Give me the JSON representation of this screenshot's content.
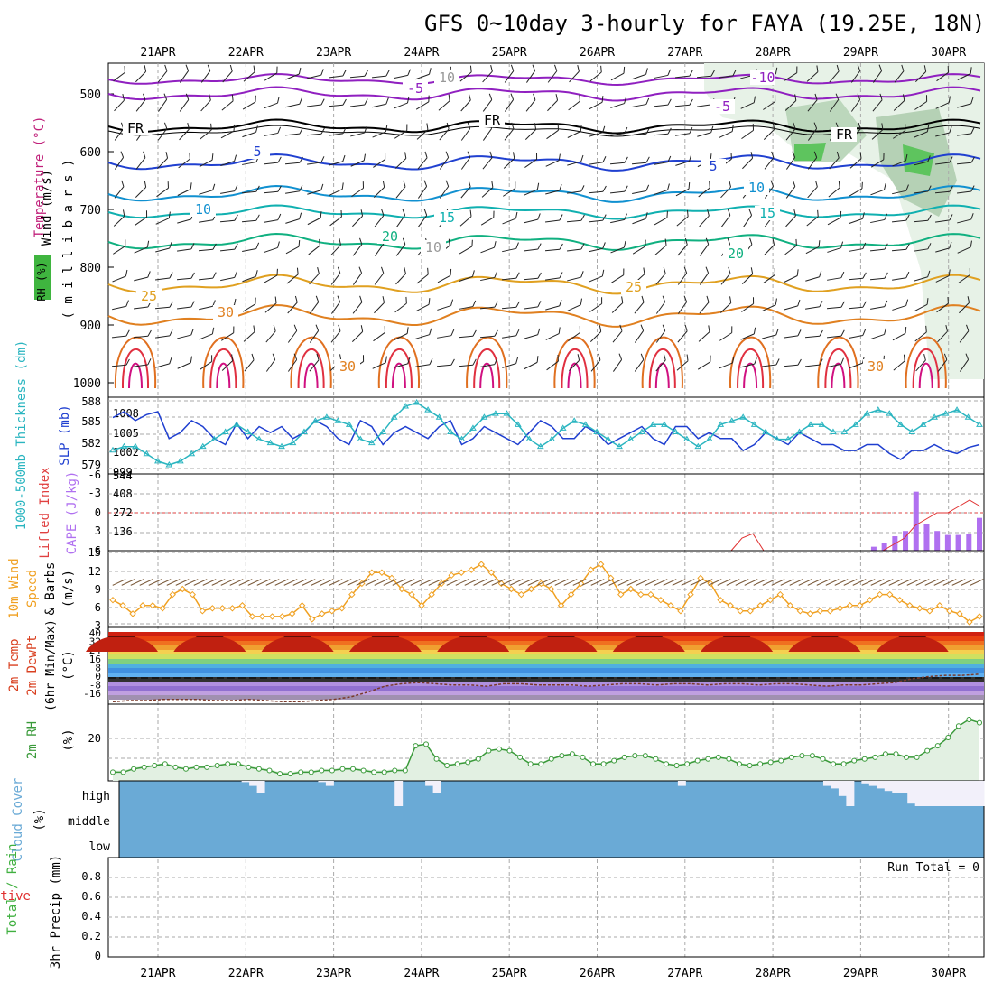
{
  "title": "GFS 0~10day 3-hourly for FAYA (19.25E, 18N)",
  "dates": [
    "21APR",
    "22APR",
    "23APR",
    "24APR",
    "25APR",
    "26APR",
    "27APR",
    "28APR",
    "29APR",
    "30APR"
  ],
  "colors": {
    "grid": "#aaaaaa",
    "slp": "#1f3fd0",
    "thickness": "#2ab5c0",
    "wind": "#f0a020",
    "cape": "#b070f0",
    "li": "#e03030",
    "rh": "#3a9a3a",
    "rh_fill": "#e2f0e2",
    "cloud": "#6aaad6",
    "temp_warm": "#d94020",
    "temp_cold": "#8a60d0"
  },
  "panels": {
    "upper": {
      "ylabels": {
        "wind": "Wind (m/s)",
        "temp": "Temperature (°C)",
        "rh": "RH (%)",
        "pres": "( m i l l i b a r s )"
      },
      "ticks": [
        "500",
        "600",
        "700",
        "800",
        "900",
        "1000"
      ]
    },
    "slp": {
      "ylabels": {
        "thick": "1000-500mb Thickness (dm)",
        "slp": "SLP (mb)"
      },
      "left_ticks": [
        "588",
        "585",
        "582",
        "579"
      ],
      "right_ticks": [
        "1008",
        "1005",
        "1002",
        "999"
      ]
    },
    "cape": {
      "ylabels": {
        "li": "Lifted Index",
        "cape": "CAPE (J/kg)"
      },
      "left_ticks": [
        "-6",
        "-3",
        "0",
        "3",
        "6"
      ],
      "right_ticks": [
        "544",
        "408",
        "272",
        "136"
      ]
    },
    "wind": {
      "ylabels": {
        "a": "10m Wind",
        "b": "Speed",
        "c": "& Barbs",
        "d": "(m/s)"
      },
      "ticks": [
        "15",
        "12",
        "9",
        "6",
        "3"
      ]
    },
    "temp2m": {
      "ylabels": {
        "a": "2m Temp",
        "b": "2m DewPt",
        "c": "(6hr Min/Max)",
        "d": "(°C)"
      },
      "ticks": [
        "40",
        "32",
        "24",
        "16",
        "8",
        "0",
        "-8",
        "-16"
      ]
    },
    "rh2m": {
      "ylabels": {
        "a": "2m RH",
        "b": "(%)"
      },
      "ticks": [
        "20"
      ]
    },
    "cloud": {
      "ylabels": {
        "a": "Cloud Cover",
        "b": "(%)"
      },
      "levels": [
        "high",
        "middle",
        "low"
      ]
    },
    "precip": {
      "ylabels": {
        "a": "Total / Rain",
        "b": "Convective",
        "c": "3hr Precip (mm)"
      },
      "ticks": [
        "0.8",
        "0.6",
        "0.4",
        "0.2",
        "0"
      ],
      "run_total": "Run Total = 0"
    }
  },
  "contour_labels": [
    "-10",
    "-5",
    "-5",
    "FR",
    "FR",
    "FR",
    "5",
    "5",
    "10",
    "10",
    "15",
    "15",
    "20",
    "20",
    "25",
    "25",
    "30",
    "10",
    "10",
    "30",
    "30"
  ],
  "chart_data": [
    {
      "type": "line",
      "panel": "1000-500mb Thickness / SLP",
      "x_label_dates": [
        "21APR",
        "22APR",
        "23APR",
        "24APR",
        "25APR",
        "26APR",
        "27APR",
        "28APR",
        "29APR",
        "30APR"
      ],
      "series": [
        {
          "name": "SLP (mb)",
          "values": [
            1007.5,
            1008.5,
            1007,
            1008,
            1008.5,
            1004,
            1005,
            1007,
            1006,
            1004,
            1003,
            1006.5,
            1004,
            1006,
            1005,
            1006,
            1004,
            1005,
            1007,
            1006,
            1004,
            1003,
            1007,
            1006,
            1003,
            1005,
            1006,
            1005,
            1004,
            1006,
            1007,
            1003,
            1004,
            1006,
            1005,
            1004,
            1003,
            1005,
            1007,
            1006,
            1004,
            1004,
            1006,
            1005,
            1003,
            1004,
            1005,
            1006,
            1004,
            1003,
            1006,
            1006,
            1004,
            1005,
            1004,
            1004,
            1002,
            1003,
            1005,
            1004,
            1003,
            1005,
            1004,
            1003,
            1003,
            1002,
            1002,
            1003,
            1003,
            1001.5,
            1000.5,
            1002,
            1002,
            1003,
            1002,
            1001.5,
            1002.5,
            1003
          ]
        },
        {
          "name": "1000-500mb Thickness (dm)",
          "values": [
            581.5,
            582,
            582,
            581,
            580,
            579.5,
            580,
            581,
            582,
            583,
            584,
            585,
            584,
            583,
            582.5,
            582,
            582.5,
            584,
            585.5,
            586,
            585.5,
            585,
            583,
            582.5,
            584,
            586,
            587.5,
            588,
            587,
            586,
            584,
            583,
            584.5,
            586,
            586.5,
            586.5,
            585,
            583,
            582,
            583,
            584.5,
            585.5,
            585,
            584,
            583,
            582,
            583,
            584,
            585,
            585,
            584,
            583,
            582,
            583,
            585,
            585.5,
            586,
            585,
            584,
            583,
            583,
            584,
            585,
            585,
            584,
            584,
            585,
            586.5,
            587,
            586.5,
            585,
            584,
            585,
            586,
            586.5,
            587,
            586,
            585
          ]
        }
      ],
      "ylim_left": [
        579,
        588
      ],
      "ylim_right": [
        999,
        1010
      ]
    },
    {
      "type": "bar",
      "panel": "CAPE (J/kg)",
      "series": [
        {
          "name": "CAPE (J/kg)",
          "values": [
            0,
            0,
            0,
            0,
            0,
            0,
            0,
            0,
            0,
            0,
            0,
            0,
            0,
            0,
            0,
            0,
            0,
            0,
            0,
            0,
            0,
            0,
            0,
            0,
            0,
            0,
            0,
            0,
            0,
            0,
            0,
            0,
            0,
            0,
            0,
            0,
            0,
            0,
            0,
            0,
            0,
            0,
            0,
            0,
            0,
            0,
            0,
            0,
            0,
            0,
            0,
            0,
            0,
            0,
            0,
            0,
            0,
            0,
            0,
            0,
            0,
            0,
            0,
            0,
            0,
            0,
            0,
            0,
            0,
            0,
            0,
            0,
            30,
            60,
            110,
            150,
            450,
            200,
            150,
            120,
            120,
            130,
            250
          ]
        }
      ],
      "ylim": [
        0,
        544
      ]
    },
    {
      "type": "line",
      "panel": "Lifted Index",
      "series": [
        {
          "name": "Lifted Index",
          "values": [
            6,
            4,
            3.3,
            6,
            6,
            6,
            6,
            6,
            6,
            6,
            6,
            6,
            6,
            6,
            6,
            5,
            4,
            2,
            1,
            0,
            0,
            -1,
            -2,
            -1
          ]
        }
      ],
      "ylim": [
        6,
        -6
      ]
    },
    {
      "type": "line",
      "panel": "10m Wind Speed",
      "series": [
        {
          "name": "10m Wind Speed (m/s)",
          "values": [
            7,
            6,
            4.5,
            6,
            6,
            5.5,
            8,
            9,
            8,
            5,
            5.5,
            5.5,
            5.5,
            6,
            4,
            4,
            4,
            4,
            4.5,
            6,
            3.5,
            4.5,
            5,
            5.5,
            8,
            10,
            12,
            12,
            11,
            9,
            8,
            6,
            8,
            10,
            11.5,
            12,
            12.5,
            13.5,
            12,
            10,
            9,
            8,
            9,
            10,
            9,
            6,
            8,
            10,
            12.5,
            13.5,
            11,
            8,
            9,
            8,
            8,
            7,
            6,
            5,
            8,
            11,
            10,
            7,
            6,
            5,
            5,
            6,
            7,
            8,
            6,
            5,
            4.5,
            5,
            5,
            5.5,
            6,
            6,
            7,
            8,
            8,
            7,
            6,
            5.5,
            5,
            6,
            5,
            4.5,
            3,
            4
          ]
        }
      ],
      "ylim": [
        3,
        15
      ]
    },
    {
      "type": "line",
      "panel": "2m Temp / 2m DewPt",
      "series": [
        {
          "name": "2m Temp (°C)",
          "values": [
            28,
            27,
            32,
            35,
            34,
            30,
            26,
            27,
            32,
            36,
            35,
            31,
            27,
            28,
            33,
            38,
            37,
            32,
            28,
            31,
            38,
            41,
            40,
            34,
            29,
            31,
            36,
            39,
            38,
            33,
            28,
            31,
            36,
            39,
            38,
            33,
            28,
            30,
            35,
            38,
            37,
            33,
            28,
            30,
            34,
            38,
            37,
            33,
            28,
            31,
            37,
            40,
            39,
            33,
            29,
            31,
            37,
            41,
            40,
            35,
            30,
            32,
            36,
            38,
            36,
            33
          ]
        },
        {
          "name": "2m DewPt (°C)",
          "values": [
            -18,
            -17,
            -17,
            -16,
            -16,
            -16,
            -17,
            -17,
            -16,
            -17,
            -18,
            -18,
            -17,
            -16,
            -14,
            -10,
            -5,
            -3,
            -2,
            -3,
            -4,
            -4,
            -5,
            -3,
            -3,
            -4,
            -4,
            -4,
            -5,
            -4,
            -3,
            -3,
            -4,
            -3,
            -3,
            -4,
            -3,
            -3,
            -4,
            -3,
            -3,
            -4,
            -5,
            -4,
            -4,
            -3,
            -2,
            1,
            3,
            4,
            4,
            5
          ]
        }
      ],
      "ylim": [
        -20,
        44
      ]
    },
    {
      "type": "area",
      "panel": "2m RH",
      "series": [
        {
          "name": "2m RH (%)",
          "values": [
            2,
            2,
            4,
            5,
            6,
            7,
            5,
            4,
            5,
            5,
            6,
            7,
            7,
            5,
            4,
            3,
            1,
            1,
            2,
            2,
            3,
            3,
            4,
            4,
            3,
            2,
            2,
            3,
            3,
            18,
            19,
            10,
            6,
            7,
            8,
            10,
            15,
            16,
            15,
            11,
            7,
            7,
            10,
            12,
            13,
            11,
            7,
            7,
            9,
            11,
            12,
            12,
            10,
            7,
            6,
            7,
            9,
            10,
            11,
            10,
            7,
            6,
            7,
            8,
            9,
            11,
            12,
            12,
            10,
            7,
            7,
            9,
            10,
            11,
            13,
            13,
            11,
            11,
            15,
            18,
            23,
            30,
            34,
            32
          ]
        }
      ],
      "ylim": [
        0,
        40
      ]
    },
    {
      "type": "bar",
      "panel": "Cloud Cover (high)",
      "series": [
        {
          "name": "high cloud (%)",
          "values": [
            0,
            0,
            0,
            0,
            0,
            0,
            0,
            0,
            0,
            0,
            0,
            0,
            0,
            0,
            0,
            0,
            5,
            20,
            50,
            0,
            0,
            0,
            0,
            0,
            0,
            0,
            5,
            20,
            0,
            0,
            0,
            0,
            0,
            0,
            0,
            0,
            100,
            0,
            0,
            0,
            20,
            50,
            0,
            0,
            0,
            0,
            0,
            0,
            0,
            0,
            0,
            0,
            0,
            0,
            0,
            0,
            0,
            0,
            0,
            0,
            0,
            0,
            0,
            0,
            0,
            0,
            0,
            0,
            0,
            0,
            0,
            0,
            0,
            20,
            0,
            0,
            0,
            0,
            0,
            0,
            0,
            0,
            0,
            0,
            0,
            0,
            0,
            0,
            0,
            0,
            0,
            0,
            20,
            30,
            60,
            100,
            0,
            10,
            20,
            30,
            40,
            50,
            50,
            90,
            100,
            100,
            100,
            100,
            100,
            100,
            100,
            100,
            100
          ]
        }
      ],
      "ylim": [
        0,
        100
      ]
    },
    {
      "type": "bar",
      "panel": "3hr Precip",
      "series": [
        {
          "name": "Total / Rain",
          "values": []
        }
      ],
      "ylim": [
        0,
        0.9
      ]
    }
  ]
}
